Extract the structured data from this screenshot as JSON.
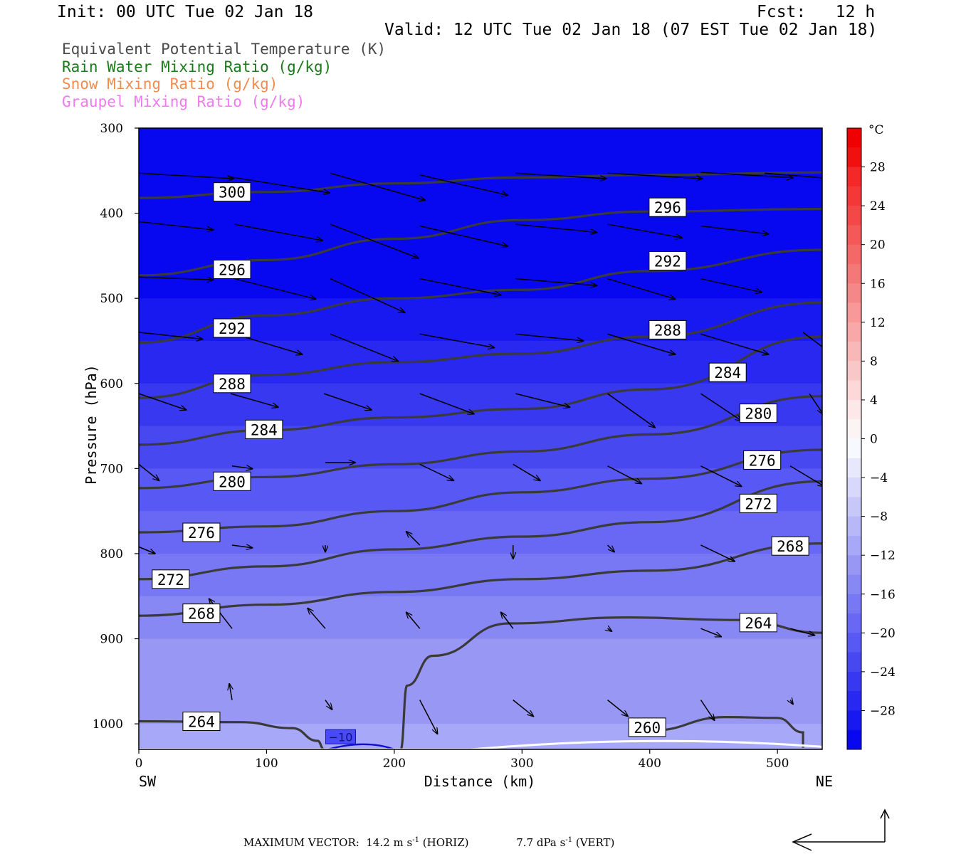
{
  "header": {
    "init": "Init: 00 UTC Tue 02 Jan 18",
    "fcst": "Fcst:   12 h",
    "valid": "Valid: 12 UTC Tue 02 Jan 18 (07 EST Tue 02 Jan 18)"
  },
  "legend": [
    {
      "label": "Equivalent Potential Temperature (K)",
      "color": "#4a4a4a"
    },
    {
      "label": "Rain Water Mixing Ratio (g/kg)",
      "color": "#1a7a1a"
    },
    {
      "label": "Snow Mixing Ratio (g/kg)",
      "color": "#f08c50"
    },
    {
      "label": "Graupel Mixing Ratio (g/kg)",
      "color": "#f07af0"
    }
  ],
  "footer": {
    "vector_prefix": "MAXIMUM VECTOR:",
    "horiz": "14.2 m s",
    "horiz_suffix": " (HORIZ)",
    "vert": "7.7 dPa s",
    "vert_suffix": " (VERT)",
    "exponent": "-1"
  },
  "chart_data": {
    "type": "contour",
    "xlabel": "Distance (km)",
    "ylabel": "Pressure (hPa)",
    "xlim": [
      0,
      535
    ],
    "ylim": [
      1030,
      300
    ],
    "x_ticks": [
      0,
      100,
      200,
      300,
      400,
      500
    ],
    "y_ticks": [
      300,
      400,
      500,
      600,
      700,
      800,
      900,
      1000
    ],
    "x_end_labels": {
      "left": "SW",
      "right": "NE"
    },
    "colorbar": {
      "unit": "°C",
      "tick_labels": [
        "28",
        "24",
        "20",
        "16",
        "12",
        "8",
        "4",
        "0",
        "−4",
        "−8",
        "−12",
        "−16",
        "−20",
        "−24",
        "−28"
      ],
      "tick_values": [
        28,
        24,
        20,
        16,
        12,
        8,
        4,
        0,
        -4,
        -8,
        -12,
        -16,
        -20,
        -24,
        -28
      ],
      "levels": [
        32,
        30,
        28,
        26,
        24,
        22,
        20,
        18,
        16,
        14,
        12,
        10,
        8,
        6,
        4,
        2,
        0,
        -2,
        -4,
        -6,
        -8,
        -10,
        -12,
        -14,
        -16,
        -18,
        -20,
        -22,
        -24,
        -26,
        -28,
        -30,
        -32
      ],
      "colors": [
        "#f00000",
        "#f01010",
        "#f42828",
        "#f43838",
        "#f44848",
        "#f45858",
        "#f46868",
        "#f47878",
        "#f48888",
        "#f89898",
        "#f8a8a8",
        "#f8b8b8",
        "#f8c8c8",
        "#fcd8d8",
        "#fce8e8",
        "#fcf4f4",
        "#f8f8ff",
        "#e8e8fc",
        "#d8d8fc",
        "#c8c8f8",
        "#b8b8f8",
        "#a8a8f8",
        "#9898f4",
        "#8888f4",
        "#7878f4",
        "#6868f4",
        "#5858f4",
        "#4848f0",
        "#3838f0",
        "#2828f0",
        "#1818f0",
        "#0808f0"
      ]
    },
    "temperature_field": {
      "pressures": [
        300,
        400,
        450,
        500,
        550,
        600,
        650,
        700,
        750,
        800,
        850,
        900,
        950,
        1000,
        1030
      ],
      "band_temps_C": [
        -30,
        -30,
        -30,
        -28,
        -26,
        -24,
        -23,
        -21,
        -19,
        -17,
        -15,
        -13,
        -12,
        -11,
        -11
      ],
      "contour_value_C": [
        -10
      ],
      "contour_label": "−10"
    },
    "theta_e_contours": [
      {
        "label": "300",
        "x": [
          0,
          100,
          200,
          300,
          400,
          535
        ],
        "p": [
          382,
          375,
          365,
          358,
          355,
          352
        ]
      },
      {
        "label": "296",
        "x": [
          0,
          100,
          200,
          300,
          400,
          535
        ],
        "p": [
          473,
          455,
          430,
          408,
          398,
          395
        ]
      },
      {
        "label": "292",
        "x": [
          0,
          100,
          200,
          300,
          400,
          535
        ],
        "p": [
          552,
          520,
          500,
          490,
          468,
          443
        ]
      },
      {
        "label": "288",
        "x": [
          0,
          100,
          200,
          300,
          400,
          535
        ],
        "p": [
          617,
          590,
          575,
          565,
          545,
          505
        ]
      },
      {
        "label": "284",
        "x": [
          0,
          100,
          200,
          300,
          400,
          535
        ],
        "p": [
          672,
          655,
          640,
          630,
          607,
          545
        ]
      },
      {
        "label": "280",
        "x": [
          0,
          100,
          200,
          300,
          400,
          535
        ],
        "p": [
          723,
          710,
          695,
          680,
          660,
          615
        ]
      },
      {
        "label": "276",
        "x": [
          0,
          100,
          200,
          300,
          400,
          535
        ],
        "p": [
          775,
          768,
          750,
          728,
          712,
          678
        ]
      },
      {
        "label": "272",
        "x": [
          0,
          100,
          200,
          300,
          400,
          535
        ],
        "p": [
          830,
          815,
          795,
          780,
          763,
          715
        ]
      },
      {
        "label": "268",
        "x": [
          0,
          100,
          200,
          300,
          400,
          535
        ],
        "p": [
          873,
          860,
          845,
          830,
          820,
          788
        ]
      },
      {
        "label": "264",
        "x": [
          0,
          80,
          120,
          140,
          145
        ],
        "p": [
          997,
          998,
          1005,
          1020,
          1030
        ]
      },
      {
        "label": "264",
        "x": [
          205,
          210,
          230,
          290,
          380,
          470,
          535
        ],
        "p": [
          1030,
          955,
          920,
          882,
          875,
          878,
          893
        ]
      },
      {
        "label": "260",
        "x": [
          400,
          460,
          500,
          520,
          520
        ],
        "p": [
          1008,
          992,
          993,
          1010,
          1028
        ]
      }
    ],
    "contour_labels": [
      {
        "text": "300",
        "x": 73,
        "p": 375
      },
      {
        "text": "296",
        "x": 73,
        "p": 466
      },
      {
        "text": "292",
        "x": 73,
        "p": 535
      },
      {
        "text": "288",
        "x": 73,
        "p": 600
      },
      {
        "text": "284",
        "x": 98,
        "p": 654
      },
      {
        "text": "280",
        "x": 73,
        "p": 715
      },
      {
        "text": "276",
        "x": 49,
        "p": 775
      },
      {
        "text": "272",
        "x": 25,
        "p": 830
      },
      {
        "text": "268",
        "x": 49,
        "p": 870
      },
      {
        "text": "264",
        "x": 49,
        "p": 997
      },
      {
        "text": "296",
        "x": 414,
        "p": 393
      },
      {
        "text": "292",
        "x": 414,
        "p": 456
      },
      {
        "text": "288",
        "x": 414,
        "p": 537
      },
      {
        "text": "284",
        "x": 461,
        "p": 587
      },
      {
        "text": "280",
        "x": 485,
        "p": 635
      },
      {
        "text": "276",
        "x": 488,
        "p": 690
      },
      {
        "text": "272",
        "x": 485,
        "p": 741
      },
      {
        "text": "268",
        "x": 510,
        "p": 791
      },
      {
        "text": "264",
        "x": 485,
        "p": 881
      },
      {
        "text": "260",
        "x": 398,
        "p": 1004
      }
    ],
    "wind_vectors": [
      {
        "x": 0,
        "p": 353,
        "u": 70,
        "w": -4
      },
      {
        "x": 70,
        "p": 357,
        "u": 75,
        "w": -12
      },
      {
        "x": 150,
        "p": 353,
        "u": 70,
        "w": -20
      },
      {
        "x": 220,
        "p": 355,
        "u": 65,
        "w": -15
      },
      {
        "x": 295,
        "p": 353,
        "u": 67,
        "w": -4
      },
      {
        "x": 367,
        "p": 353,
        "u": 70,
        "w": -4
      },
      {
        "x": 440,
        "p": 352,
        "u": 68,
        "w": -4
      },
      {
        "x": 490,
        "p": 353,
        "u": 50,
        "w": -4
      },
      {
        "x": 0,
        "p": 410,
        "u": 55,
        "w": -6
      },
      {
        "x": 75,
        "p": 413,
        "u": 65,
        "w": -12
      },
      {
        "x": 150,
        "p": 413,
        "u": 65,
        "w": -25
      },
      {
        "x": 220,
        "p": 415,
        "u": 65,
        "w": -15
      },
      {
        "x": 295,
        "p": 413,
        "u": 60,
        "w": -6
      },
      {
        "x": 367,
        "p": 413,
        "u": 55,
        "w": -10
      },
      {
        "x": 440,
        "p": 415,
        "u": 50,
        "w": -6
      },
      {
        "x": 0,
        "p": 475,
        "u": 55,
        "w": -2
      },
      {
        "x": 75,
        "p": 477,
        "u": 60,
        "w": -15
      },
      {
        "x": 150,
        "p": 477,
        "u": 55,
        "w": -25
      },
      {
        "x": 220,
        "p": 477,
        "u": 60,
        "w": -12
      },
      {
        "x": 295,
        "p": 477,
        "u": 60,
        "w": -5
      },
      {
        "x": 367,
        "p": 477,
        "u": 50,
        "w": -15
      },
      {
        "x": 440,
        "p": 477,
        "u": 45,
        "w": -10
      },
      {
        "x": 0,
        "p": 540,
        "u": 47,
        "w": -5
      },
      {
        "x": 75,
        "p": 542,
        "u": 50,
        "w": -15
      },
      {
        "x": 150,
        "p": 542,
        "u": 50,
        "w": -20
      },
      {
        "x": 220,
        "p": 542,
        "u": 55,
        "w": -10
      },
      {
        "x": 295,
        "p": 542,
        "u": 50,
        "w": -5
      },
      {
        "x": 367,
        "p": 542,
        "u": 50,
        "w": -15
      },
      {
        "x": 440,
        "p": 542,
        "u": 50,
        "w": -15
      },
      {
        "x": 520,
        "p": 540,
        "u": 20,
        "w": -15
      },
      {
        "x": 0,
        "p": 612,
        "u": 35,
        "w": -12
      },
      {
        "x": 72,
        "p": 612,
        "u": 35,
        "w": -10
      },
      {
        "x": 145,
        "p": 612,
        "u": 35,
        "w": -12
      },
      {
        "x": 220,
        "p": 612,
        "u": 40,
        "w": -15
      },
      {
        "x": 295,
        "p": 612,
        "u": 40,
        "w": -10
      },
      {
        "x": 367,
        "p": 612,
        "u": 35,
        "w": -25
      },
      {
        "x": 440,
        "p": 612,
        "u": 30,
        "w": -20
      },
      {
        "x": 525,
        "p": 612,
        "u": 10,
        "w": -15
      },
      {
        "x": 0,
        "p": 695,
        "u": 15,
        "w": -12
      },
      {
        "x": 73,
        "p": 697,
        "u": 15,
        "w": -2
      },
      {
        "x": 146,
        "p": 693,
        "u": 22,
        "w": 0
      },
      {
        "x": 220,
        "p": 695,
        "u": 25,
        "w": -12
      },
      {
        "x": 293,
        "p": 695,
        "u": 20,
        "w": -12
      },
      {
        "x": 367,
        "p": 697,
        "u": 25,
        "w": -13
      },
      {
        "x": 440,
        "p": 697,
        "u": 30,
        "w": -15
      },
      {
        "x": 510,
        "p": 697,
        "u": 25,
        "w": -15
      },
      {
        "x": 0,
        "p": 792,
        "u": 12,
        "w": -5
      },
      {
        "x": 73,
        "p": 790,
        "u": 15,
        "w": -2
      },
      {
        "x": 146,
        "p": 790,
        "u": 0,
        "w": -5
      },
      {
        "x": 220,
        "p": 790,
        "u": -10,
        "w": 10
      },
      {
        "x": 293,
        "p": 790,
        "u": 0,
        "w": -10
      },
      {
        "x": 367,
        "p": 790,
        "u": 5,
        "w": -5
      },
      {
        "x": 440,
        "p": 790,
        "u": 25,
        "w": -12
      },
      {
        "x": 0,
        "p": 888,
        "u": 0,
        "w": 0
      },
      {
        "x": 73,
        "p": 888,
        "u": -17,
        "w": 22
      },
      {
        "x": 146,
        "p": 888,
        "u": -13,
        "w": 15
      },
      {
        "x": 220,
        "p": 888,
        "u": -10,
        "w": 12
      },
      {
        "x": 293,
        "p": 888,
        "u": -9,
        "w": 12
      },
      {
        "x": 367,
        "p": 888,
        "u": 3,
        "w": -2
      },
      {
        "x": 440,
        "p": 888,
        "u": 15,
        "w": -6
      },
      {
        "x": 510,
        "p": 888,
        "u": 18,
        "w": -5
      },
      {
        "x": 73,
        "p": 972,
        "u": -2,
        "w": 12
      },
      {
        "x": 146,
        "p": 972,
        "u": 5,
        "w": -7
      },
      {
        "x": 220,
        "p": 972,
        "u": 13,
        "w": -25
      },
      {
        "x": 293,
        "p": 972,
        "u": 15,
        "w": -12
      },
      {
        "x": 367,
        "p": 972,
        "u": 15,
        "w": -12
      },
      {
        "x": 440,
        "p": 972,
        "u": 10,
        "w": -15
      },
      {
        "x": 510,
        "p": 972,
        "u": 2,
        "w": -3
      }
    ]
  }
}
